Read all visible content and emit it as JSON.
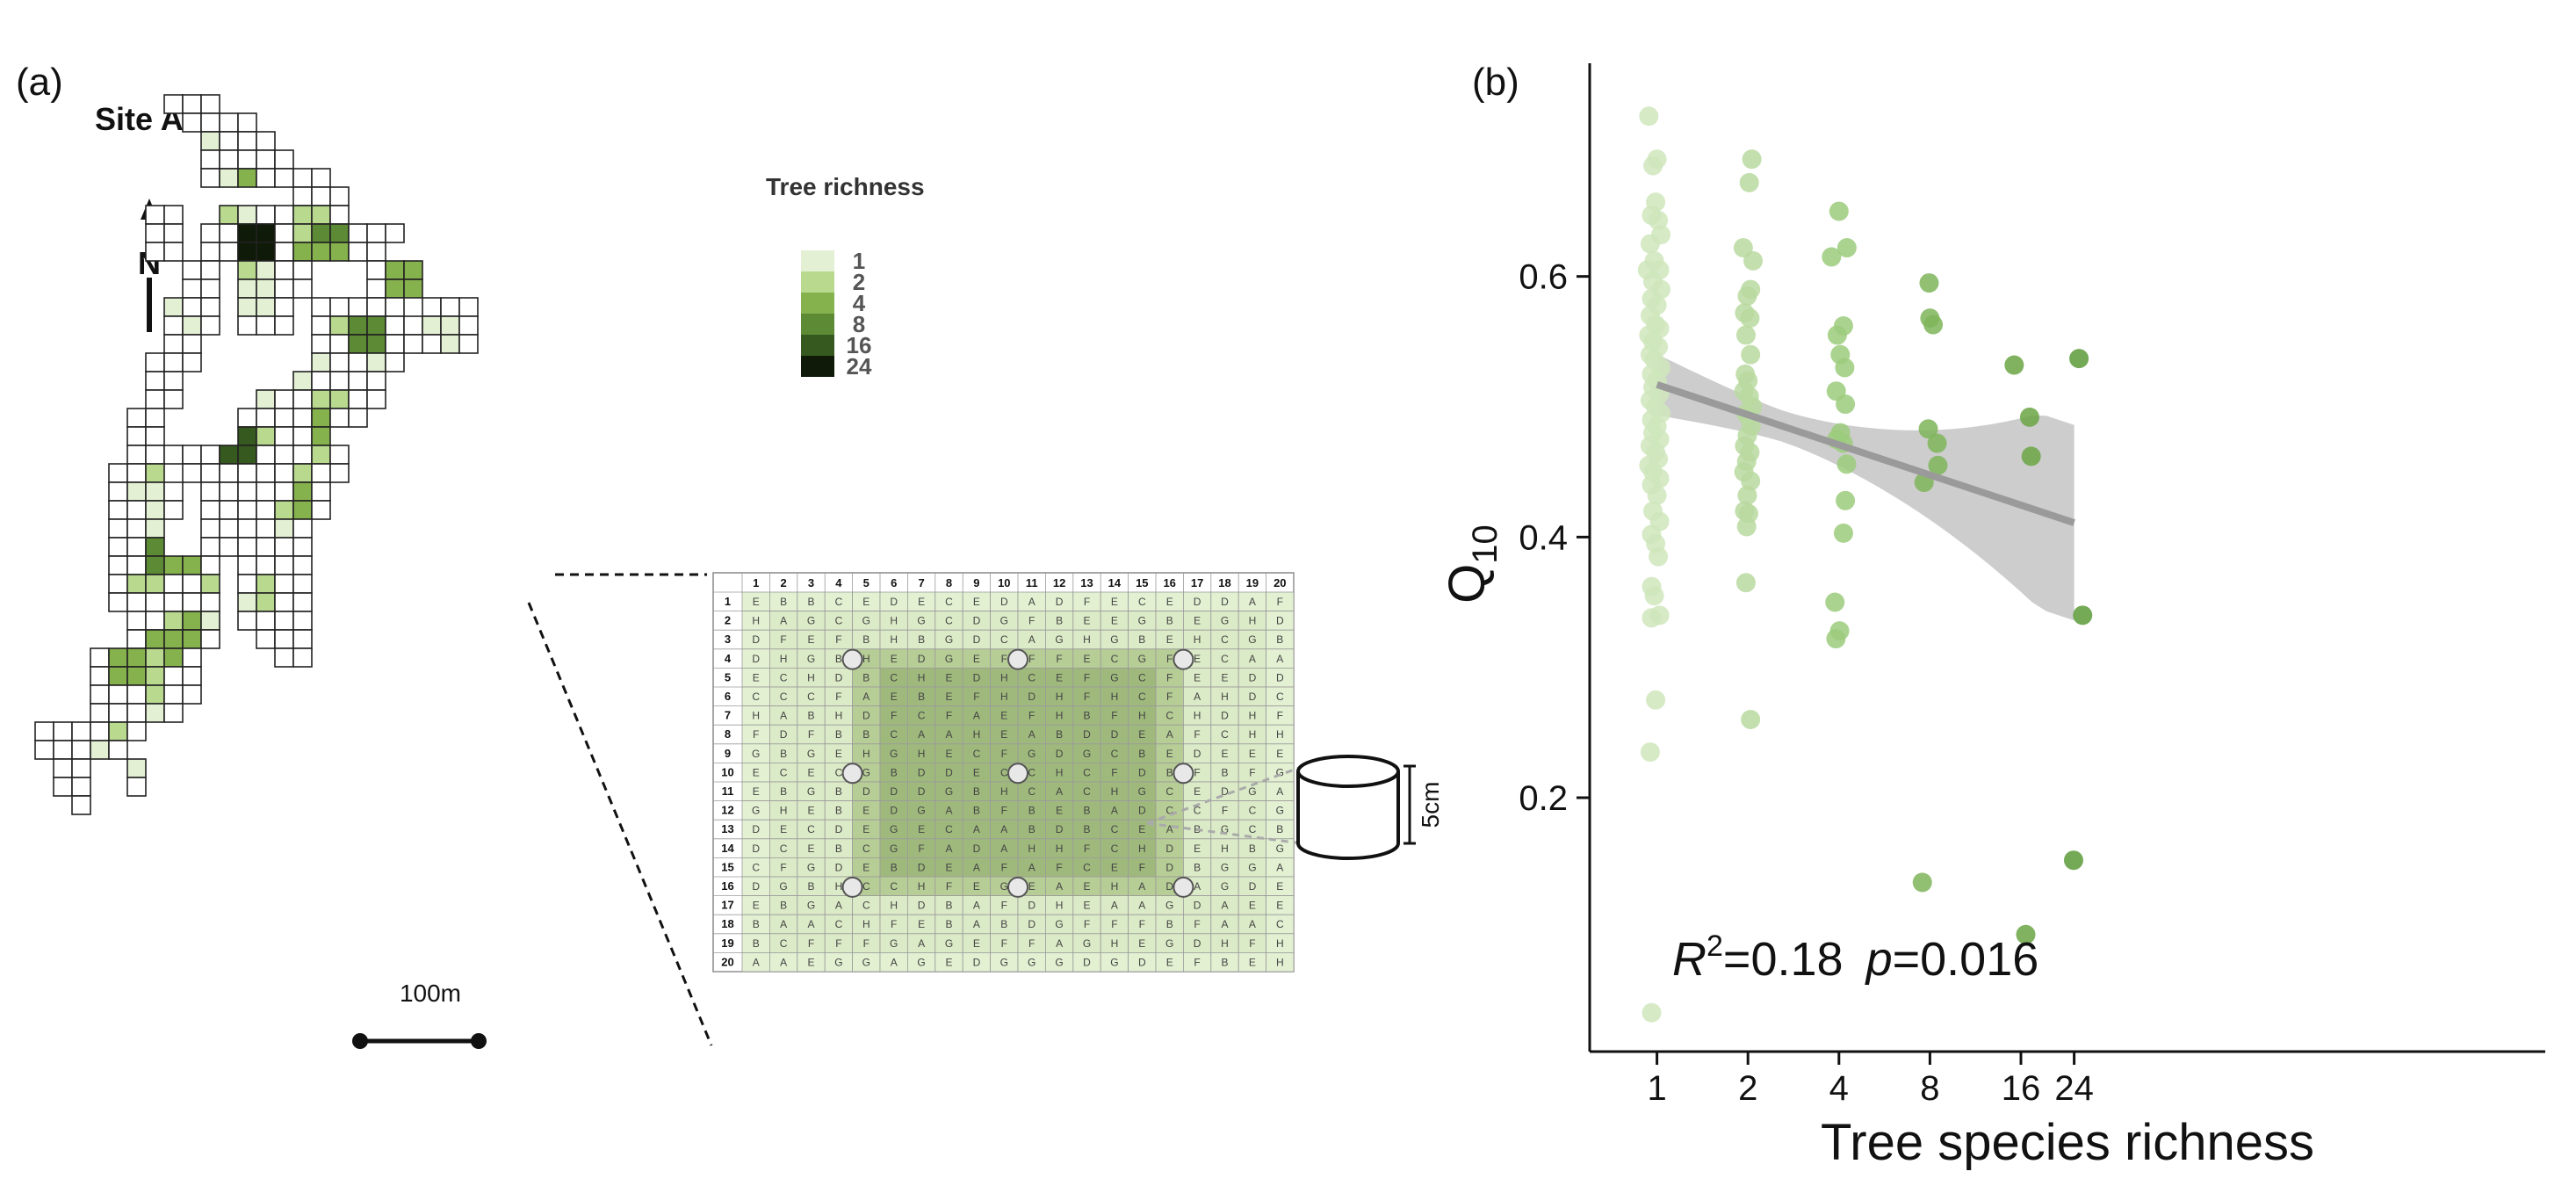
{
  "panel_a": {
    "label": "(a)",
    "site_title": "Site A",
    "north_label": "N",
    "scale_label": "100m",
    "legend": {
      "title": "Tree richness",
      "levels": [
        {
          "label": "1",
          "color": "#e4f0d4"
        },
        {
          "label": "2",
          "color": "#b8d98e"
        },
        {
          "label": "4",
          "color": "#86b24e"
        },
        {
          "label": "8",
          "color": "#5c8a35"
        },
        {
          "label": "16",
          "color": "#36591f"
        },
        {
          "label": "24",
          "color": "#0f1a08"
        }
      ]
    },
    "plot_grid": {
      "columns": [
        "1",
        "2",
        "3",
        "4",
        "5",
        "6",
        "7",
        "8",
        "9",
        "10",
        "11",
        "12",
        "13",
        "14",
        "15",
        "16",
        "17",
        "18",
        "19",
        "20"
      ],
      "rows": [
        "1",
        "2",
        "3",
        "4",
        "5",
        "6",
        "7",
        "8",
        "9",
        "10",
        "11",
        "12",
        "13",
        "14",
        "15",
        "16",
        "17",
        "18",
        "19",
        "20"
      ],
      "letters": [
        "EBBCEDECEDADFECEDDAF",
        "HAGCGHGCDGFBEEGBEGHD",
        "DFEFBHBGDCAGHGBEHCGB",
        "DHGBHEDGEFFFECGFECAA",
        "ECHDBCHEDHCEFGCFEEDD",
        "CCCFAEBEFHDHFHCFAHDC",
        "HABHDFCFAEFHBFHCHDHF",
        "FDFBBCAAHEABDDEAFCHH",
        "GBGEHGHECFGDGCBEDEEE",
        "ECECGBDDECCHCFDBFBFG",
        "EBGBDDDGBHCACHGCEDGA",
        "GHEBEDGABFBEBADCCFCG",
        "DECDEGECAABDBCEABGCB",
        "DCEBCGFADAHHFCHDEHBG",
        "CFGDEBDEAFAFCEFDBGGA",
        "DGBHCCHFEGEAEHADAGDE",
        "EBGACHDBAFDHEAAGDAEE",
        "BAACHFEBABDGFFFBFAAC",
        "BCFFFGAGEFFAGHEGDHFH",
        "AAEGGAGEDGGGDGDEFBEH"
      ]
    },
    "sensor_label": "5cm"
  },
  "panel_b": {
    "label": "(b)",
    "annotation": {
      "r_letter": "R",
      "r_sup": "2",
      "r_value": "=0.18",
      "p_letter": "p",
      "p_value": "=0.016"
    }
  },
  "chart_data": {
    "type": "scatter",
    "xlabel": "Tree species richness",
    "ylabel": "Q",
    "ylabel_subscript": "10",
    "x_scale": "log2",
    "x_ticks": [
      1,
      2,
      4,
      8,
      16,
      24
    ],
    "x_tick_labels": [
      "1",
      "2",
      "4",
      "8",
      "16",
      "24"
    ],
    "y_ticks": [
      0.2,
      0.4,
      0.6
    ],
    "y_tick_labels": [
      "0.2",
      "0.4",
      "0.6"
    ],
    "xlim": [
      0.7,
      30
    ],
    "ylim": [
      0.0,
      0.74
    ],
    "grid": false,
    "regression": {
      "x": [
        1,
        24
      ],
      "y": [
        0.517,
        0.411
      ],
      "ci_lower": [
        0.495,
        0.352
      ],
      "ci_upper": [
        0.54,
        0.472
      ],
      "r2": 0.18,
      "p": 0.016
    },
    "series": [
      {
        "richness": 1,
        "color": "#cfe6bc",
        "points": [
          [
            0.94,
            0.723
          ],
          [
            0.97,
            0.685
          ],
          [
            1.0,
            0.69
          ],
          [
            0.99,
            0.657
          ],
          [
            0.96,
            0.647
          ],
          [
            1.01,
            0.643
          ],
          [
            1.03,
            0.632
          ],
          [
            0.95,
            0.625
          ],
          [
            0.98,
            0.612
          ],
          [
            1.02,
            0.605
          ],
          [
            0.93,
            0.605
          ],
          [
            0.97,
            0.596
          ],
          [
            1.03,
            0.59
          ],
          [
            0.96,
            0.583
          ],
          [
            1.0,
            0.578
          ],
          [
            0.95,
            0.57
          ],
          [
            0.99,
            0.563
          ],
          [
            1.02,
            0.56
          ],
          [
            0.94,
            0.555
          ],
          [
            0.97,
            0.55
          ],
          [
            1.01,
            0.546
          ],
          [
            0.95,
            0.54
          ],
          [
            0.98,
            0.536
          ],
          [
            1.03,
            0.53
          ],
          [
            0.96,
            0.525
          ],
          [
            1.0,
            0.52
          ],
          [
            0.97,
            0.515
          ],
          [
            1.02,
            0.51
          ],
          [
            0.95,
            0.505
          ],
          [
            0.99,
            0.5
          ],
          [
            1.03,
            0.495
          ],
          [
            0.96,
            0.49
          ],
          [
            1.0,
            0.485
          ],
          [
            0.97,
            0.48
          ],
          [
            1.02,
            0.475
          ],
          [
            0.95,
            0.47
          ],
          [
            0.99,
            0.465
          ],
          [
            1.01,
            0.46
          ],
          [
            0.94,
            0.455
          ],
          [
            0.97,
            0.45
          ],
          [
            1.02,
            0.445
          ],
          [
            0.96,
            0.44
          ],
          [
            1.0,
            0.432
          ],
          [
            0.97,
            0.42
          ],
          [
            1.02,
            0.412
          ],
          [
            0.96,
            0.402
          ],
          [
            0.99,
            0.395
          ],
          [
            1.01,
            0.385
          ],
          [
            0.96,
            0.362
          ],
          [
            0.98,
            0.355
          ],
          [
            0.96,
            0.338
          ],
          [
            1.02,
            0.34
          ],
          [
            0.99,
            0.275
          ],
          [
            0.95,
            0.235
          ],
          [
            0.96,
            0.035
          ]
        ]
      },
      {
        "richness": 2,
        "color": "#b8d9a0",
        "points": [
          [
            2.06,
            0.69
          ],
          [
            2.02,
            0.672
          ],
          [
            1.93,
            0.622
          ],
          [
            2.08,
            0.612
          ],
          [
            2.04,
            0.59
          ],
          [
            1.99,
            0.585
          ],
          [
            1.95,
            0.572
          ],
          [
            2.03,
            0.568
          ],
          [
            1.97,
            0.555
          ],
          [
            2.04,
            0.54
          ],
          [
            1.96,
            0.525
          ],
          [
            2.0,
            0.52
          ],
          [
            1.94,
            0.512
          ],
          [
            2.02,
            0.508
          ],
          [
            2.07,
            0.5
          ],
          [
            1.97,
            0.495
          ],
          [
            2.01,
            0.492
          ],
          [
            2.05,
            0.485
          ],
          [
            1.99,
            0.478
          ],
          [
            1.95,
            0.47
          ],
          [
            2.03,
            0.465
          ],
          [
            1.98,
            0.458
          ],
          [
            1.94,
            0.45
          ],
          [
            2.04,
            0.443
          ],
          [
            1.99,
            0.432
          ],
          [
            1.95,
            0.42
          ],
          [
            2.01,
            0.418
          ],
          [
            1.98,
            0.408
          ],
          [
            1.97,
            0.365
          ],
          [
            2.04,
            0.26
          ]
        ]
      },
      {
        "richness": 4,
        "color": "#9ccb7d",
        "points": [
          [
            4.0,
            0.65
          ],
          [
            4.25,
            0.622
          ],
          [
            3.78,
            0.615
          ],
          [
            4.14,
            0.562
          ],
          [
            3.95,
            0.555
          ],
          [
            4.04,
            0.54
          ],
          [
            4.18,
            0.53
          ],
          [
            3.92,
            0.512
          ],
          [
            4.2,
            0.502
          ],
          [
            4.05,
            0.48
          ],
          [
            3.93,
            0.475
          ],
          [
            4.13,
            0.472
          ],
          [
            4.24,
            0.456
          ],
          [
            4.2,
            0.428
          ],
          [
            4.14,
            0.403
          ],
          [
            3.88,
            0.35
          ],
          [
            4.02,
            0.328
          ],
          [
            3.91,
            0.322
          ]
        ]
      },
      {
        "richness": 8,
        "color": "#7fb55a",
        "points": [
          [
            7.95,
            0.595
          ],
          [
            8.0,
            0.568
          ],
          [
            8.2,
            0.563
          ],
          [
            7.9,
            0.483
          ],
          [
            8.45,
            0.472
          ],
          [
            8.5,
            0.455
          ],
          [
            7.65,
            0.442
          ],
          [
            7.55,
            0.135
          ]
        ]
      },
      {
        "richness": 16,
        "color": "#6aa444",
        "points": [
          [
            15.2,
            0.532
          ],
          [
            17.1,
            0.492
          ],
          [
            17.3,
            0.462
          ],
          [
            16.6,
            0.095
          ]
        ]
      },
      {
        "richness": 24,
        "color": "#5c9a38",
        "points": [
          [
            24.9,
            0.537
          ],
          [
            25.6,
            0.34
          ],
          [
            23.9,
            0.152
          ]
        ]
      }
    ]
  }
}
